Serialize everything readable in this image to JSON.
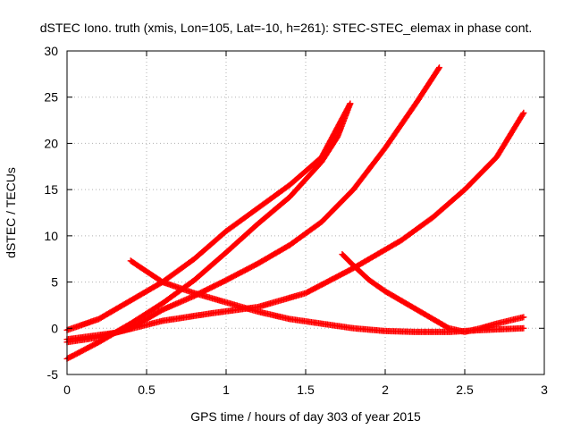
{
  "chart_data": {
    "type": "scatter",
    "title": "dSTEC Iono. truth (xmis, Lon=105, Lat=-10, h=261): STEC-STEC_elemax in phase cont.",
    "xlabel": "GPS time / hours of day 303 of year 2015",
    "ylabel": "dSTEC  / TECUs",
    "xlim": [
      0,
      3
    ],
    "ylim": [
      -5,
      30
    ],
    "xticks": [
      0,
      0.5,
      1,
      1.5,
      2,
      2.5,
      3
    ],
    "xtick_labels": [
      "0",
      "0.5",
      "1",
      "1.5",
      "2",
      "2.5",
      "3"
    ],
    "yticks": [
      -5,
      0,
      5,
      10,
      15,
      20,
      25,
      30
    ],
    "ytick_labels": [
      "-5",
      "0",
      "5",
      "10",
      "15",
      "20",
      "25",
      "30"
    ],
    "grid": true,
    "marker": "plus",
    "color": "#ff0000",
    "series": [
      {
        "points": [
          [
            0.0,
            -3.3
          ],
          [
            0.2,
            -1.5
          ],
          [
            0.4,
            0.5
          ],
          [
            0.6,
            2.7
          ],
          [
            0.8,
            5.2
          ],
          [
            1.0,
            8.2
          ],
          [
            1.2,
            11.3
          ],
          [
            1.4,
            14.2
          ],
          [
            1.6,
            18.0
          ],
          [
            1.7,
            20.7
          ],
          [
            1.78,
            24.3
          ]
        ]
      },
      {
        "points": [
          [
            0.0,
            -1.5
          ],
          [
            0.2,
            -1.0
          ],
          [
            0.4,
            0.0
          ],
          [
            0.6,
            2.0
          ],
          [
            0.8,
            3.5
          ],
          [
            1.0,
            5.2
          ],
          [
            1.2,
            7.0
          ],
          [
            1.4,
            9.0
          ],
          [
            1.6,
            11.5
          ],
          [
            1.8,
            15.0
          ],
          [
            2.0,
            19.5
          ],
          [
            2.2,
            24.5
          ],
          [
            2.34,
            28.2
          ]
        ]
      },
      {
        "points": [
          [
            0.0,
            -0.2
          ],
          [
            0.2,
            1.0
          ],
          [
            0.4,
            3.0
          ],
          [
            0.6,
            5.0
          ],
          [
            0.8,
            7.5
          ],
          [
            1.0,
            10.5
          ],
          [
            1.2,
            13.0
          ],
          [
            1.4,
            15.5
          ],
          [
            1.6,
            18.5
          ],
          [
            1.78,
            24.3
          ]
        ]
      },
      {
        "points": [
          [
            0.0,
            -1.2
          ],
          [
            0.3,
            -0.5
          ],
          [
            0.6,
            0.8
          ],
          [
            0.9,
            1.6
          ],
          [
            1.2,
            2.3
          ],
          [
            1.5,
            3.8
          ],
          [
            1.8,
            6.5
          ],
          [
            2.1,
            9.5
          ],
          [
            2.3,
            12.0
          ],
          [
            2.5,
            15.0
          ],
          [
            2.7,
            18.5
          ],
          [
            2.87,
            23.3
          ]
        ]
      },
      {
        "points": [
          [
            0.4,
            7.3
          ],
          [
            0.6,
            5.0
          ],
          [
            0.8,
            3.8
          ],
          [
            1.0,
            2.8
          ],
          [
            1.2,
            1.8
          ],
          [
            1.4,
            1.0
          ],
          [
            1.6,
            0.5
          ],
          [
            1.8,
            0.0
          ],
          [
            2.0,
            -0.3
          ],
          [
            2.2,
            -0.4
          ],
          [
            2.4,
            -0.4
          ],
          [
            2.6,
            -0.2
          ],
          [
            2.87,
            0.0
          ]
        ]
      },
      {
        "points": [
          [
            1.73,
            8.0
          ],
          [
            1.8,
            6.8
          ],
          [
            1.9,
            5.2
          ],
          [
            2.0,
            4.0
          ],
          [
            2.1,
            3.0
          ],
          [
            2.2,
            2.0
          ],
          [
            2.3,
            1.0
          ],
          [
            2.4,
            0.0
          ],
          [
            2.5,
            -0.4
          ],
          [
            2.6,
            0.0
          ],
          [
            2.7,
            0.5
          ],
          [
            2.87,
            1.2
          ]
        ]
      }
    ]
  }
}
